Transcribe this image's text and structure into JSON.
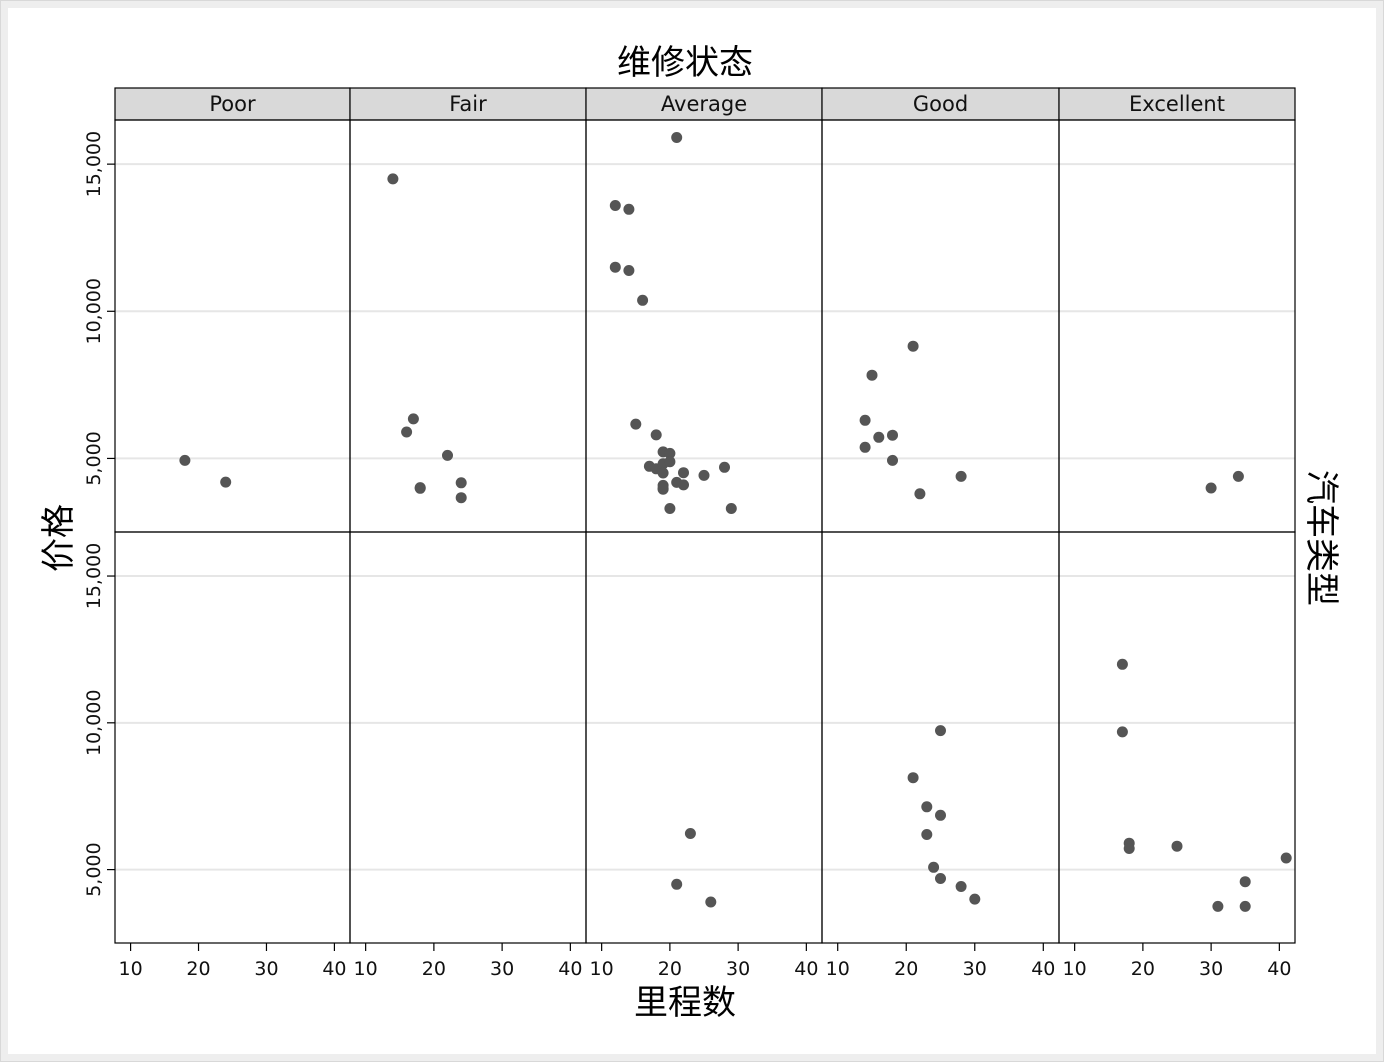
{
  "chart_data": {
    "type": "scatter",
    "title": "维修状态",
    "xlabel": "里程数",
    "ylabel": "价格",
    "row_title": "汽车类型",
    "columns": [
      "Poor",
      "Fair",
      "Average",
      "Good",
      "Excellent"
    ],
    "xlim": [
      8,
      42
    ],
    "xticks": [
      10,
      20,
      30,
      40
    ],
    "ylim": [
      2500,
      16500
    ],
    "yticks": [
      5000,
      10000,
      15000
    ],
    "ytick_labels": [
      "5,000",
      "10,000",
      "15,000"
    ],
    "grid": true,
    "panels": [
      {
        "row": 0,
        "column": "Poor",
        "points": [
          [
            18,
            4934
          ],
          [
            24,
            4195
          ]
        ]
      },
      {
        "row": 0,
        "column": "Fair",
        "points": [
          [
            14,
            14500
          ],
          [
            16,
            5899
          ],
          [
            17,
            6342
          ],
          [
            18,
            3984
          ],
          [
            18,
            4010
          ],
          [
            22,
            5104
          ],
          [
            24,
            4172
          ],
          [
            24,
            3667
          ]
        ]
      },
      {
        "row": 0,
        "column": "Average",
        "points": [
          [
            12,
            13594
          ],
          [
            12,
            11497
          ],
          [
            14,
            13466
          ],
          [
            14,
            11385
          ],
          [
            15,
            6165
          ],
          [
            16,
            10372
          ],
          [
            17,
            4733
          ],
          [
            18,
            4647
          ],
          [
            18,
            5799
          ],
          [
            19,
            5222
          ],
          [
            19,
            4816
          ],
          [
            19,
            4504
          ],
          [
            19,
            4082
          ],
          [
            19,
            3955
          ],
          [
            19,
            3984
          ],
          [
            20,
            5172
          ],
          [
            20,
            4890
          ],
          [
            20,
            3299
          ],
          [
            21,
            15906
          ],
          [
            21,
            4187
          ],
          [
            22,
            4516
          ],
          [
            22,
            4099
          ],
          [
            25,
            4424
          ],
          [
            28,
            4697
          ],
          [
            29,
            3299
          ]
        ]
      },
      {
        "row": 0,
        "column": "Good",
        "points": [
          [
            14,
            6295
          ],
          [
            14,
            5379
          ],
          [
            15,
            7827
          ],
          [
            16,
            5719
          ],
          [
            18,
            5788
          ],
          [
            18,
            4934
          ],
          [
            21,
            8814
          ],
          [
            22,
            3798
          ],
          [
            28,
            4389
          ]
        ]
      },
      {
        "row": 0,
        "column": "Excellent",
        "points": [
          [
            30,
            3995
          ],
          [
            34,
            4389
          ]
        ]
      },
      {
        "row": 1,
        "column": "Poor",
        "points": []
      },
      {
        "row": 1,
        "column": "Fair",
        "points": []
      },
      {
        "row": 1,
        "column": "Average",
        "points": [
          [
            21,
            4499
          ],
          [
            23,
            6229
          ],
          [
            26,
            3895
          ]
        ]
      },
      {
        "row": 1,
        "column": "Good",
        "points": [
          [
            21,
            8129
          ],
          [
            23,
            7140
          ],
          [
            23,
            6197
          ],
          [
            24,
            5079
          ],
          [
            25,
            9735
          ],
          [
            25,
            6850
          ],
          [
            25,
            4697
          ],
          [
            28,
            4425
          ],
          [
            30,
            3995
          ]
        ]
      },
      {
        "row": 1,
        "column": "Excellent",
        "points": [
          [
            17,
            11995
          ],
          [
            17,
            9690
          ],
          [
            18,
            5899
          ],
          [
            18,
            5719
          ],
          [
            25,
            5799
          ],
          [
            31,
            3748
          ],
          [
            35,
            4589
          ],
          [
            35,
            3748
          ],
          [
            41,
            5397
          ]
        ]
      }
    ]
  }
}
